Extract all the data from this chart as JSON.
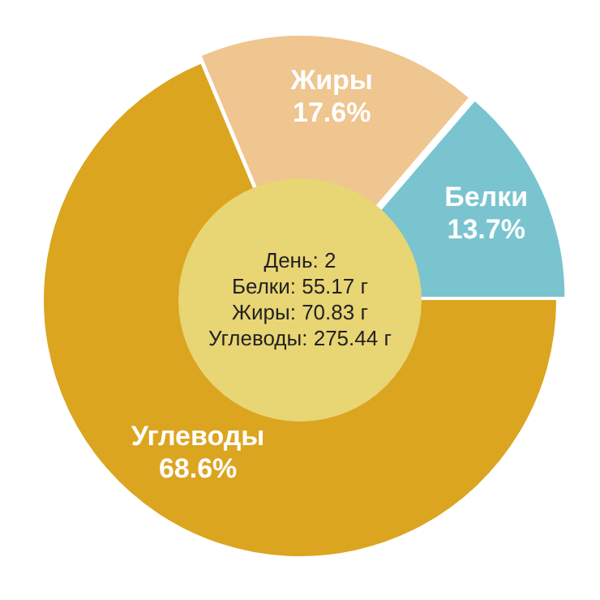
{
  "chart_data": {
    "type": "pie",
    "categories": [
      "Углеводы",
      "Жиры",
      "Белки"
    ],
    "values": [
      68.6,
      17.6,
      13.7
    ],
    "colors": [
      "#dba520",
      "#efc590",
      "#79c4cf"
    ],
    "value_labels": [
      "68.6%",
      "17.6%",
      "13.7%"
    ],
    "annotations": [
      "День: 2",
      "Белки: 55.17 г",
      "Жиры: 70.83 г",
      "Углеводы: 275.44 г"
    ],
    "legend": false
  }
}
